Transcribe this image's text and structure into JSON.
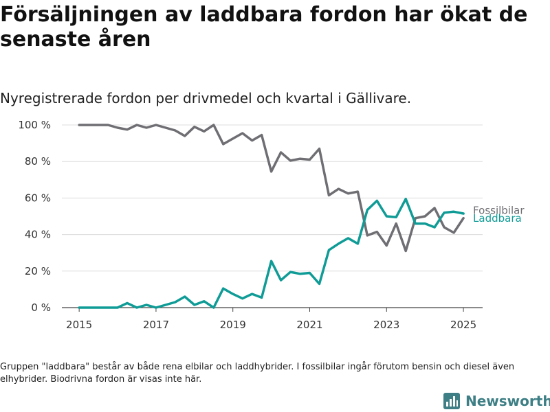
{
  "title": "Försäljningen av laddbara fordon har ökat de senaste åren",
  "subtitle": "Nyregistrerade fordon per drivmedel och kvartal i Gällivare.",
  "note": "Gruppen \"laddbara\" består av både rena elbilar och laddhybrider. I fossilbilar ingår förutom bensin och diesel även elhybrider. Biodrivna fordon är visas inte här.",
  "brand": {
    "name": "Newsworthy",
    "icon": "newsworthy-logo-icon",
    "color": "#3d7f85"
  },
  "chart_data": {
    "type": "line",
    "x": [
      2015.0,
      2015.25,
      2015.5,
      2015.75,
      2016.0,
      2016.25,
      2016.5,
      2016.75,
      2017.0,
      2017.25,
      2017.5,
      2017.75,
      2018.0,
      2018.25,
      2018.5,
      2018.75,
      2019.0,
      2019.25,
      2019.5,
      2019.75,
      2020.0,
      2020.25,
      2020.5,
      2020.75,
      2021.0,
      2021.25,
      2021.5,
      2021.75,
      2022.0,
      2022.25,
      2022.5,
      2022.75,
      2023.0,
      2023.25,
      2023.5,
      2023.75,
      2024.0,
      2024.25,
      2024.5,
      2024.75,
      2025.0
    ],
    "series": [
      {
        "name": "Fossilbilar",
        "color": "#6e6e73",
        "values": [
          100,
          100,
          100,
          100,
          98.5,
          97.5,
          100,
          98.5,
          100,
          98.5,
          97,
          94,
          99,
          96.5,
          100,
          89.5,
          92.5,
          95.5,
          91.5,
          94.5,
          74.5,
          85,
          80.5,
          81.5,
          81,
          87,
          61.5,
          65,
          62.5,
          63.5,
          39.5,
          41.5,
          34,
          46,
          31,
          49,
          50,
          54.5,
          44,
          41,
          49
        ]
      },
      {
        "name": "Laddbara",
        "color": "#0f9b96",
        "values": [
          0,
          0,
          0,
          0,
          0,
          2.5,
          0,
          1.5,
          0,
          1.5,
          3,
          6,
          1.5,
          3.5,
          0,
          10.5,
          7.5,
          5,
          7.5,
          5.5,
          25.5,
          15,
          19.5,
          18.5,
          19,
          13,
          31.5,
          35,
          38,
          35,
          53.5,
          58.5,
          50,
          49.5,
          59.5,
          46,
          46,
          44,
          52,
          52.5,
          51.5
        ]
      }
    ],
    "xlim": [
      2014.55,
      2025.5
    ],
    "ylim": [
      0,
      100
    ],
    "xticks": [
      2015,
      2017,
      2019,
      2021,
      2023,
      2025
    ],
    "yticks": [
      0,
      20,
      40,
      60,
      80,
      100
    ],
    "ytick_suffix": " %",
    "grid": true,
    "legend": "direct-labels-right"
  }
}
